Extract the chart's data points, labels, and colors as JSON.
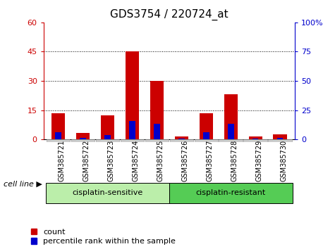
{
  "title": "GDS3754 / 220724_at",
  "samples": [
    "GSM385721",
    "GSM385722",
    "GSM385723",
    "GSM385724",
    "GSM385725",
    "GSM385726",
    "GSM385727",
    "GSM385728",
    "GSM385729",
    "GSM385730"
  ],
  "count_values": [
    13.5,
    3.5,
    12.5,
    45.0,
    30.0,
    1.5,
    13.5,
    23.0,
    1.5,
    2.5
  ],
  "percentile_values": [
    6.0,
    1.5,
    3.5,
    16.0,
    13.5,
    1.0,
    6.0,
    13.5,
    1.0,
    1.5
  ],
  "count_color": "#cc0000",
  "percentile_color": "#0000cc",
  "bar_width": 0.55,
  "perc_bar_width": 0.25,
  "ylim_left": [
    0,
    60
  ],
  "ylim_right": [
    0,
    100
  ],
  "yticks_left": [
    0,
    15,
    30,
    45,
    60
  ],
  "yticks_right": [
    0,
    25,
    50,
    75,
    100
  ],
  "ytick_labels_left": [
    "0",
    "15",
    "30",
    "45",
    "60"
  ],
  "ytick_labels_right": [
    "0",
    "25",
    "50",
    "75",
    "100%"
  ],
  "groups": [
    {
      "label": "cisplatin-sensitive",
      "start": 0,
      "end": 5,
      "color": "#bbeeaa"
    },
    {
      "label": "cisplatin-resistant",
      "start": 5,
      "end": 10,
      "color": "#55cc55"
    }
  ],
  "group_label": "cell line",
  "legend_count": "count",
  "legend_percentile": "percentile rank within the sample",
  "tick_bg_color": "#cccccc",
  "plot_bg_color": "#ffffff",
  "title_fontsize": 11,
  "tick_fontsize": 8,
  "label_fontsize": 8
}
